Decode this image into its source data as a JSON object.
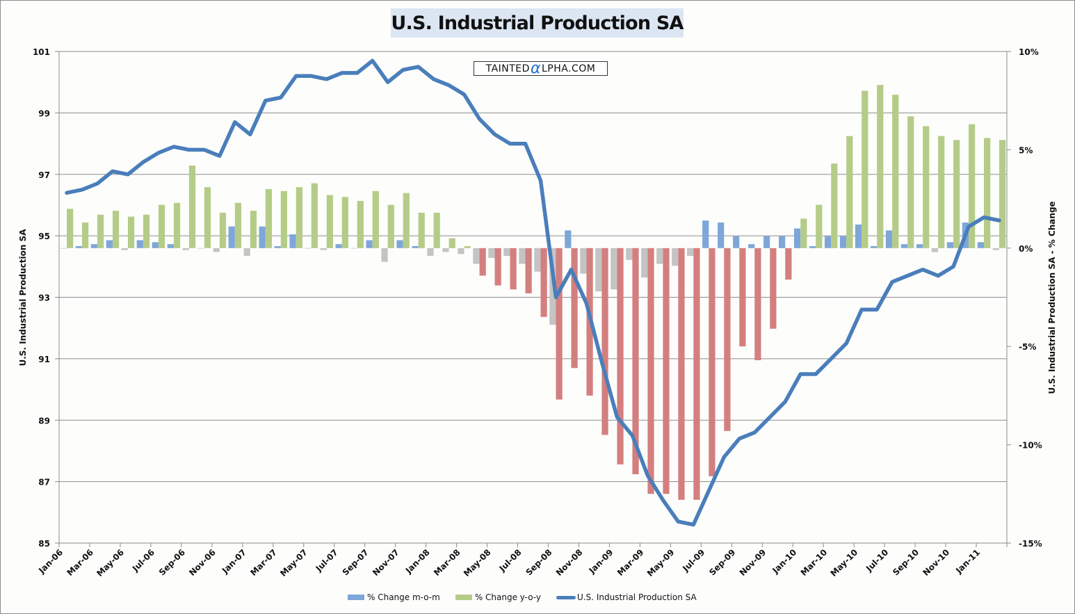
{
  "chart_data": {
    "type": "bar+line",
    "title": "U.S. Industrial Production SA",
    "watermark": {
      "prefix": "TAINTED",
      "alpha": "α",
      "suffix": "LPHA.COM"
    },
    "ylabel_left": "U.S. Industrial Production SA",
    "ylabel_right": "U.S. Industrial Production SA - % Change",
    "ylim_left": [
      85,
      101
    ],
    "yticks_left": [
      "85",
      "87",
      "89",
      "91",
      "93",
      "95",
      "97",
      "99",
      "101"
    ],
    "ylim_right": [
      -15,
      10
    ],
    "yticks_right": [
      "-15%",
      "-10%",
      "-5%",
      "0%",
      "5%",
      "10%"
    ],
    "grid": "horizontal",
    "legend_position": "bottom",
    "categories": [
      "Jan-06",
      "Feb-06",
      "Mar-06",
      "Apr-06",
      "May-06",
      "Jun-06",
      "Jul-06",
      "Aug-06",
      "Sep-06",
      "Oct-06",
      "Nov-06",
      "Dec-06",
      "Jan-07",
      "Feb-07",
      "Mar-07",
      "Apr-07",
      "May-07",
      "Jun-07",
      "Jul-07",
      "Aug-07",
      "Sep-07",
      "Oct-07",
      "Nov-07",
      "Dec-07",
      "Jan-08",
      "Feb-08",
      "Mar-08",
      "Apr-08",
      "May-08",
      "Jun-08",
      "Jul-08",
      "Aug-08",
      "Sep-08",
      "Oct-08",
      "Nov-08",
      "Dec-08",
      "Jan-09",
      "Feb-09",
      "Mar-09",
      "Apr-09",
      "May-09",
      "Jun-09",
      "Jul-09",
      "Aug-09",
      "Sep-09",
      "Oct-09",
      "Nov-09",
      "Dec-09",
      "Jan-10",
      "Feb-10",
      "Mar-10",
      "Apr-10",
      "May-10",
      "Jun-10",
      "Jul-10",
      "Aug-10",
      "Sep-10",
      "Oct-10",
      "Nov-10",
      "Dec-10",
      "Jan-11",
      "Feb-11"
    ],
    "xtick_labels": [
      "Jan-06",
      "Mar-06",
      "May-06",
      "Jul-06",
      "Sep-06",
      "Nov-06",
      "Jan-07",
      "Mar-07",
      "May-07",
      "Jul-07",
      "Sep-07",
      "Nov-07",
      "Jan-08",
      "Mar-08",
      "May-08",
      "Jul-08",
      "Sep-08",
      "Nov-08",
      "Jan-09",
      "Mar-09",
      "May-09",
      "Jul-09",
      "Sep-09",
      "Nov-09",
      "Jan-10",
      "Mar-10",
      "May-10",
      "Jul-10",
      "Sep-10",
      "Nov-10",
      "Jan-11"
    ],
    "series": [
      {
        "name": "% Change m-o-m",
        "type": "bar",
        "axis": "right",
        "color": "#7ea6d8",
        "negative_color": "#c4c4c4",
        "values": [
          0.0,
          0.1,
          0.2,
          0.4,
          -0.1,
          0.4,
          0.3,
          0.2,
          -0.1,
          0.0,
          -0.2,
          1.1,
          -0.4,
          1.1,
          0.1,
          0.7,
          0.0,
          -0.1,
          0.2,
          0.0,
          0.4,
          -0.7,
          0.4,
          0.1,
          -0.4,
          -0.2,
          -0.3,
          -0.8,
          -0.5,
          -0.4,
          -0.8,
          -1.2,
          -3.9,
          0.9,
          -1.3,
          -2.2,
          -2.1,
          -0.6,
          -1.5,
          -0.8,
          -0.9,
          -0.4,
          1.4,
          1.3,
          0.6,
          0.2,
          0.6,
          0.6,
          1.0,
          0.1,
          0.6,
          0.6,
          1.2,
          0.1,
          0.9,
          0.2,
          0.2,
          -0.2,
          0.3,
          1.3,
          0.3,
          -0.1
        ]
      },
      {
        "name": "% Change y-o-y",
        "type": "bar",
        "axis": "right",
        "color": "#b5cc88",
        "negative_color": "#d47f7f",
        "values": [
          2.0,
          1.3,
          1.7,
          1.9,
          1.6,
          1.7,
          2.2,
          2.3,
          4.2,
          3.1,
          1.8,
          2.3,
          1.9,
          3.0,
          2.9,
          3.1,
          3.3,
          2.7,
          2.6,
          2.4,
          2.9,
          2.2,
          2.8,
          1.8,
          1.8,
          0.5,
          0.1,
          -1.4,
          -1.9,
          -2.1,
          -2.3,
          -3.5,
          -7.7,
          -6.1,
          -7.5,
          -9.5,
          -11.0,
          -11.5,
          -12.5,
          -12.5,
          -12.8,
          -12.8,
          -11.6,
          -9.3,
          -5.0,
          -5.7,
          -4.1,
          -1.6,
          1.5,
          2.2,
          4.3,
          5.7,
          8.0,
          8.3,
          7.8,
          6.7,
          6.2,
          5.7,
          5.5,
          6.3,
          5.6,
          5.5
        ]
      },
      {
        "name": "U.S. Industrial Production SA",
        "type": "line",
        "axis": "left",
        "color": "#4a7ebb",
        "values": [
          96.4,
          96.5,
          96.7,
          97.1,
          97.0,
          97.4,
          97.7,
          97.9,
          97.8,
          97.8,
          97.6,
          98.7,
          98.3,
          99.4,
          99.5,
          100.2,
          100.2,
          100.1,
          100.3,
          100.3,
          100.7,
          100.0,
          100.4,
          100.5,
          100.1,
          99.9,
          99.6,
          98.8,
          98.3,
          98.0,
          98.0,
          96.8,
          93.0,
          93.9,
          92.8,
          90.9,
          89.1,
          88.5,
          87.2,
          86.4,
          85.7,
          85.6,
          86.7,
          87.8,
          88.4,
          88.6,
          89.1,
          89.6,
          90.5,
          90.5,
          91.0,
          91.5,
          92.6,
          92.6,
          93.5,
          93.7,
          93.9,
          93.7,
          94.0,
          95.3,
          95.6,
          95.5
        ]
      }
    ]
  }
}
